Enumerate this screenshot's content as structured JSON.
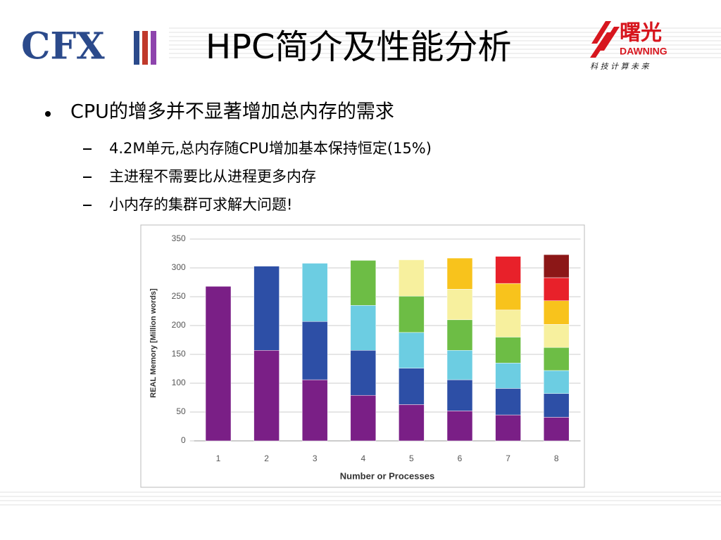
{
  "header": {
    "title": "HPC简介及性能分析",
    "logo_left": "CFX",
    "logo_right": {
      "name": "曙光",
      "brand": "DAWNING",
      "slogan": "科 技 计 算 未 来"
    }
  },
  "bullets": [
    {
      "text": "CPU的增多并不显著增加总内存的需求",
      "sub": [
        "4.2M单元,总内存随CPU增加基本保持恒定(15%)",
        "主进程不需要比从进程更多内存",
        "小内存的集群可求解大问题!"
      ]
    }
  ],
  "chart_data": {
    "type": "bar",
    "stacked": true,
    "xlabel": "Number or Processes",
    "ylabel": "REAL Memory [Million words]",
    "categories": [
      "1",
      "2",
      "3",
      "4",
      "5",
      "6",
      "7",
      "8"
    ],
    "series": [
      {
        "color": "#7a1f86",
        "values": [
          268,
          157,
          106,
          79,
          63,
          52,
          45,
          41
        ]
      },
      {
        "color": "#2d4fa6",
        "values": [
          null,
          146,
          101,
          78,
          63,
          54,
          46,
          41
        ]
      },
      {
        "color": "#6ccde2",
        "values": [
          null,
          null,
          101,
          78,
          62,
          51,
          44,
          40
        ]
      },
      {
        "color": "#6dbd45",
        "values": [
          null,
          null,
          null,
          78,
          63,
          53,
          45,
          40
        ]
      },
      {
        "color": "#f7f09e",
        "values": [
          null,
          null,
          null,
          null,
          63,
          53,
          47,
          40
        ]
      },
      {
        "color": "#f8c31c",
        "values": [
          null,
          null,
          null,
          null,
          null,
          54,
          46,
          41
        ]
      },
      {
        "color": "#e8212a",
        "values": [
          null,
          null,
          null,
          null,
          null,
          null,
          47,
          40
        ]
      },
      {
        "color": "#8c1717",
        "values": [
          null,
          null,
          null,
          null,
          null,
          null,
          null,
          40
        ]
      }
    ],
    "ylim": [
      0,
      350
    ],
    "yticks": [
      0,
      50,
      100,
      150,
      200,
      250,
      300,
      350
    ],
    "grid": true
  }
}
